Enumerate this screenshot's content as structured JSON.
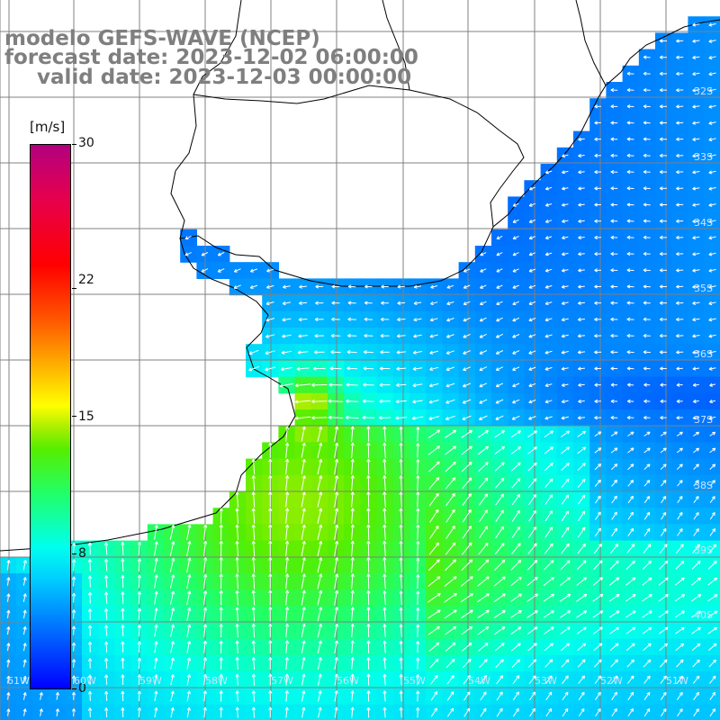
{
  "title": {
    "line1": "modelo GEFS-WAVE (NCEP)",
    "line2": "forecast date: 2023-12-02 06:00:00",
    "line3": "valid date: 2023-12-03 00:00:00"
  },
  "colorbar": {
    "unit": "[m/s]",
    "labels": [
      "30",
      "22",
      "15",
      "8",
      "0"
    ],
    "values": [
      30,
      22,
      15,
      8,
      0
    ]
  },
  "lat_labels": [
    "32S",
    "33S",
    "34S",
    "35S",
    "36S",
    "37S",
    "38S",
    "39S",
    "40S"
  ],
  "lon_labels": [
    "61W",
    "60W",
    "59W",
    "58W",
    "57W",
    "56W",
    "55W",
    "54W",
    "53W",
    "52W",
    "51W",
    "50W"
  ],
  "colors": {
    "land": "#ffffff",
    "grid": "#808080",
    "coast": "#000000",
    "arrow": "#ffffff"
  }
}
